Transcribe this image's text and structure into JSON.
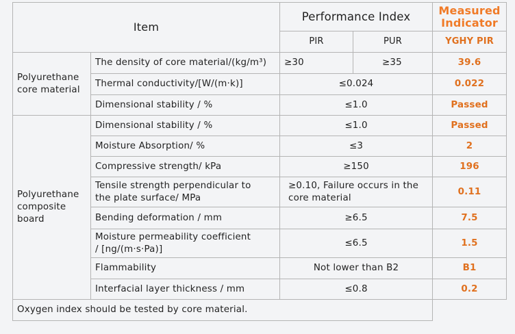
{
  "header": {
    "item": "Item",
    "performance_index": "Performance Index",
    "measured_indicator_line1": "Measured",
    "measured_indicator_line2": "Indicator",
    "pir": "PIR",
    "pur": "PUR",
    "yghy_pir": "YGHY PIR"
  },
  "core_material": {
    "group_line1": "Polyurethane",
    "group_line2": "core material",
    "rows": [
      {
        "property": "The density of core material/(kg/m³)",
        "pir": "≥30",
        "pur": "≥35",
        "measured": "39.6"
      },
      {
        "property": "Thermal conductivity/[W/(m·k)]",
        "index": "≤0.024",
        "measured": "0.022"
      },
      {
        "property": "Dimensional stability / %",
        "index": "≤1.0",
        "measured": "Passed"
      }
    ]
  },
  "composite_board": {
    "group_line1": "Polyurethane",
    "group_line2": "composite",
    "group_line3": "board",
    "rows": [
      {
        "property": "Dimensional stability / %",
        "index": "≤1.0",
        "measured": "Passed"
      },
      {
        "property": "Moisture Absorption/ %",
        "index": "≤3",
        "measured": "2"
      },
      {
        "property": "Compressive strength/ kPa",
        "index": "≥150",
        "measured": "196"
      },
      {
        "property_line1": "Tensile strength perpendicular to",
        "property_line2": "the plate surface/ MPa",
        "index_line1": "≥0.10,  Failure occurs in the",
        "index_line2": "core material",
        "measured": "0.11"
      },
      {
        "property": "Bending deformation / mm",
        "index": "≥6.5",
        "measured": "7.5"
      },
      {
        "property_line1": "Moisture permeability coefficient",
        "property_line2": "/ [ng/(m·s·Pa)]",
        "index": "≤6.5",
        "measured": "1.5"
      },
      {
        "property": "Flammability",
        "index": "Not lower than B2",
        "measured": "B1"
      },
      {
        "property": "Interfacial layer thickness / mm",
        "index": "≤0.8",
        "measured": "0.2"
      }
    ]
  },
  "footnote": "Oxygen index should be tested by core material.",
  "colors": {
    "accent": "#f07b28",
    "border": "#b4b4b4",
    "background": "#f3f4f6"
  }
}
